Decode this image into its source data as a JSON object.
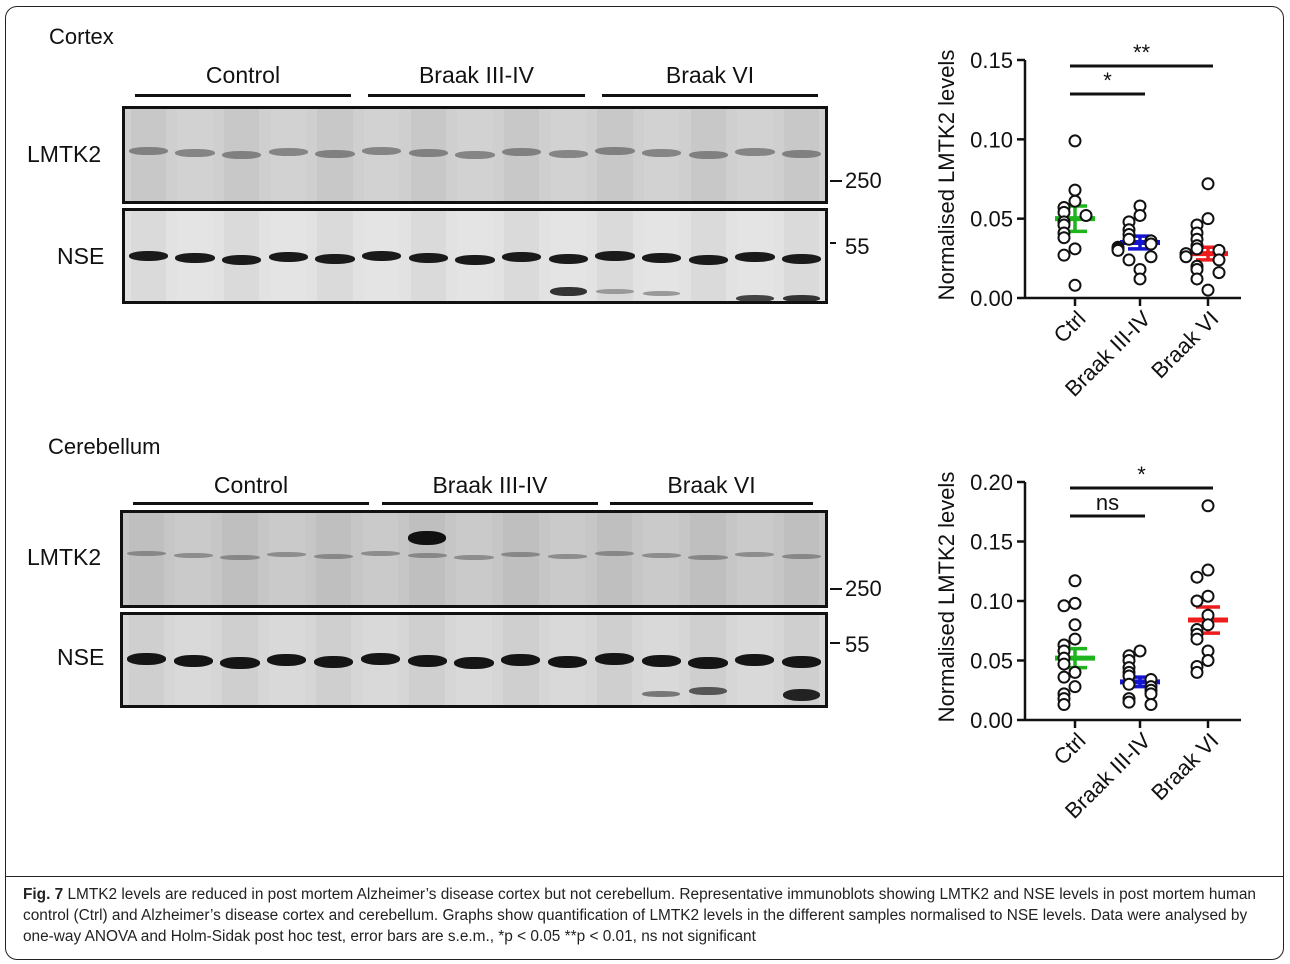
{
  "cortex": {
    "section_label": "Cortex",
    "groups": [
      "Control",
      "Braak III-IV",
      "Braak VI"
    ],
    "rows": [
      "LMTK2",
      "NSE"
    ],
    "markers": [
      "250",
      "55"
    ]
  },
  "cerebellum": {
    "section_label": "Cerebellum",
    "groups": [
      "Control",
      "Braak III-IV",
      "Braak VI"
    ],
    "rows": [
      "LMTK2",
      "NSE"
    ],
    "markers": [
      "250",
      "55"
    ]
  },
  "chart_data": [
    {
      "type": "scatter",
      "panel": "cortex",
      "ylabel": "Normalised LMTK2 levels",
      "ylim": [
        0,
        0.15
      ],
      "yticks": [
        "0.00",
        "0.05",
        "0.10",
        "0.15"
      ],
      "categories": [
        "Ctrl",
        "Braak III-IV",
        "Braak VI"
      ],
      "colors": [
        "#1db41d",
        "#1414d2",
        "#ee1c1c"
      ],
      "points": [
        [
          0.099,
          0.068,
          0.061,
          0.057,
          0.054,
          0.052,
          0.048,
          0.046,
          0.041,
          0.038,
          0.031,
          0.027,
          0.008
        ],
        [
          0.058,
          0.052,
          0.048,
          0.043,
          0.04,
          0.037,
          0.036,
          0.034,
          0.032,
          0.031,
          0.03,
          0.026,
          0.024,
          0.018,
          0.012
        ],
        [
          0.072,
          0.05,
          0.046,
          0.041,
          0.037,
          0.033,
          0.031,
          0.03,
          0.028,
          0.026,
          0.024,
          0.02,
          0.018,
          0.016,
          0.012,
          0.005
        ]
      ],
      "mean": [
        0.05,
        0.035,
        0.028
      ],
      "sem": [
        0.008,
        0.004,
        0.004
      ],
      "significance": [
        {
          "label": "*",
          "from": 0,
          "to": 1
        },
        {
          "label": "**",
          "from": 0,
          "to": 2
        }
      ]
    },
    {
      "type": "scatter",
      "panel": "cerebellum",
      "ylabel": "Normalised LMTK2 levels",
      "ylim": [
        0,
        0.2
      ],
      "yticks": [
        "0.00",
        "0.05",
        "0.10",
        "0.15",
        "0.20"
      ],
      "categories": [
        "Ctrl",
        "Braak III-IV",
        "Braak VI"
      ],
      "colors": [
        "#1db41d",
        "#1414d2",
        "#ee1c1c"
      ],
      "points": [
        [
          0.117,
          0.098,
          0.096,
          0.08,
          0.068,
          0.063,
          0.058,
          0.052,
          0.047,
          0.04,
          0.036,
          0.028,
          0.022,
          0.018,
          0.013
        ],
        [
          0.058,
          0.054,
          0.05,
          0.044,
          0.04,
          0.037,
          0.034,
          0.03,
          0.028,
          0.025,
          0.022,
          0.018,
          0.015,
          0.013
        ],
        [
          0.18,
          0.126,
          0.12,
          0.104,
          0.1,
          0.088,
          0.08,
          0.076,
          0.072,
          0.068,
          0.058,
          0.05,
          0.045,
          0.04
        ]
      ],
      "mean": [
        0.052,
        0.032,
        0.084
      ],
      "sem": [
        0.008,
        0.004,
        0.011
      ],
      "significance": [
        {
          "label": "ns",
          "from": 0,
          "to": 1
        },
        {
          "label": "*",
          "from": 0,
          "to": 2
        }
      ]
    }
  ],
  "caption": {
    "fig_label": "Fig. 7",
    "text": "LMTK2 levels are reduced in post mortem Alzheimer’s disease cortex but not cerebellum. Representative immunoblots showing LMTK2 and NSE levels in post mortem human control (Ctrl) and Alzheimer’s disease cortex and cerebellum. Graphs show quantification of LMTK2 levels in the different samples normalised to NSE levels. Data were analysed by one-way ANOVA and Holm-Sidak post hoc test, error bars are s.e.m., *p < 0.05 **p < 0.01, ns not significant"
  }
}
